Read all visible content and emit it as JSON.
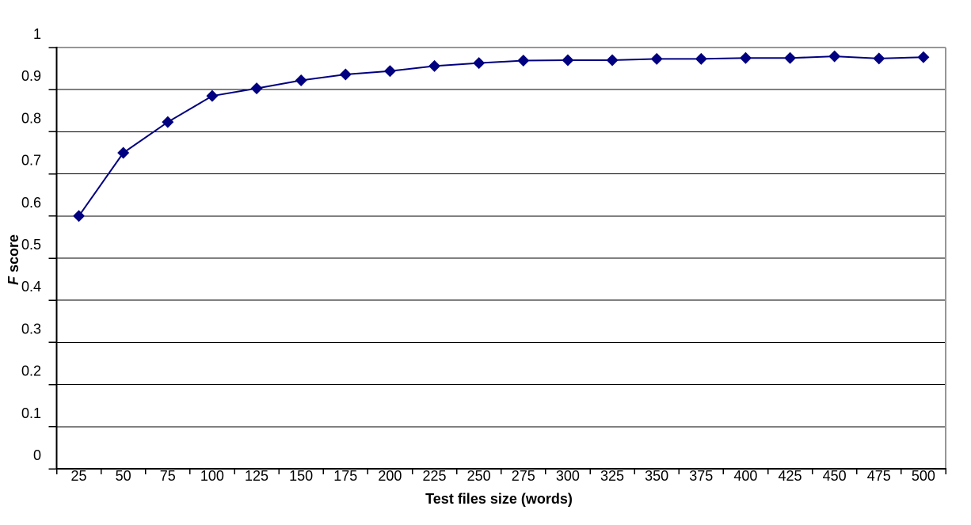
{
  "chart_data": {
    "type": "line",
    "title": "",
    "xlabel": "Test files size (words)",
    "ylabel": "F score",
    "ylabel_parts": {
      "italic": "F",
      "rest": " score"
    },
    "categories": [
      25,
      50,
      75,
      100,
      125,
      150,
      175,
      200,
      225,
      250,
      275,
      300,
      325,
      350,
      375,
      400,
      425,
      450,
      475,
      500
    ],
    "values": [
      0.6,
      0.75,
      0.823,
      0.885,
      0.903,
      0.922,
      0.936,
      0.944,
      0.956,
      0.963,
      0.969,
      0.97,
      0.97,
      0.973,
      0.973,
      0.975,
      0.975,
      0.979,
      0.974,
      0.977
    ],
    "series_name": "F score",
    "ylim": [
      0,
      1
    ],
    "ytick_labels": [
      "0",
      "0.1",
      "0.2",
      "0.3",
      "0.4",
      "0.5",
      "0.6",
      "0.7",
      "0.8",
      "0.9",
      "1"
    ],
    "xtick_labels": [
      "25",
      "50",
      "75",
      "100",
      "125",
      "150",
      "175",
      "200",
      "225",
      "250",
      "275",
      "300",
      "325",
      "350",
      "375",
      "400",
      "425",
      "450",
      "475",
      "500"
    ],
    "grid": "horizontal",
    "legend": "none",
    "marker": "diamond",
    "marker_size": 15,
    "colors": {
      "series": "#000080",
      "gridline": "#000000",
      "axis": "#000000",
      "plot_border": "#969696",
      "text": "#000000",
      "background": "#ffffff"
    }
  }
}
